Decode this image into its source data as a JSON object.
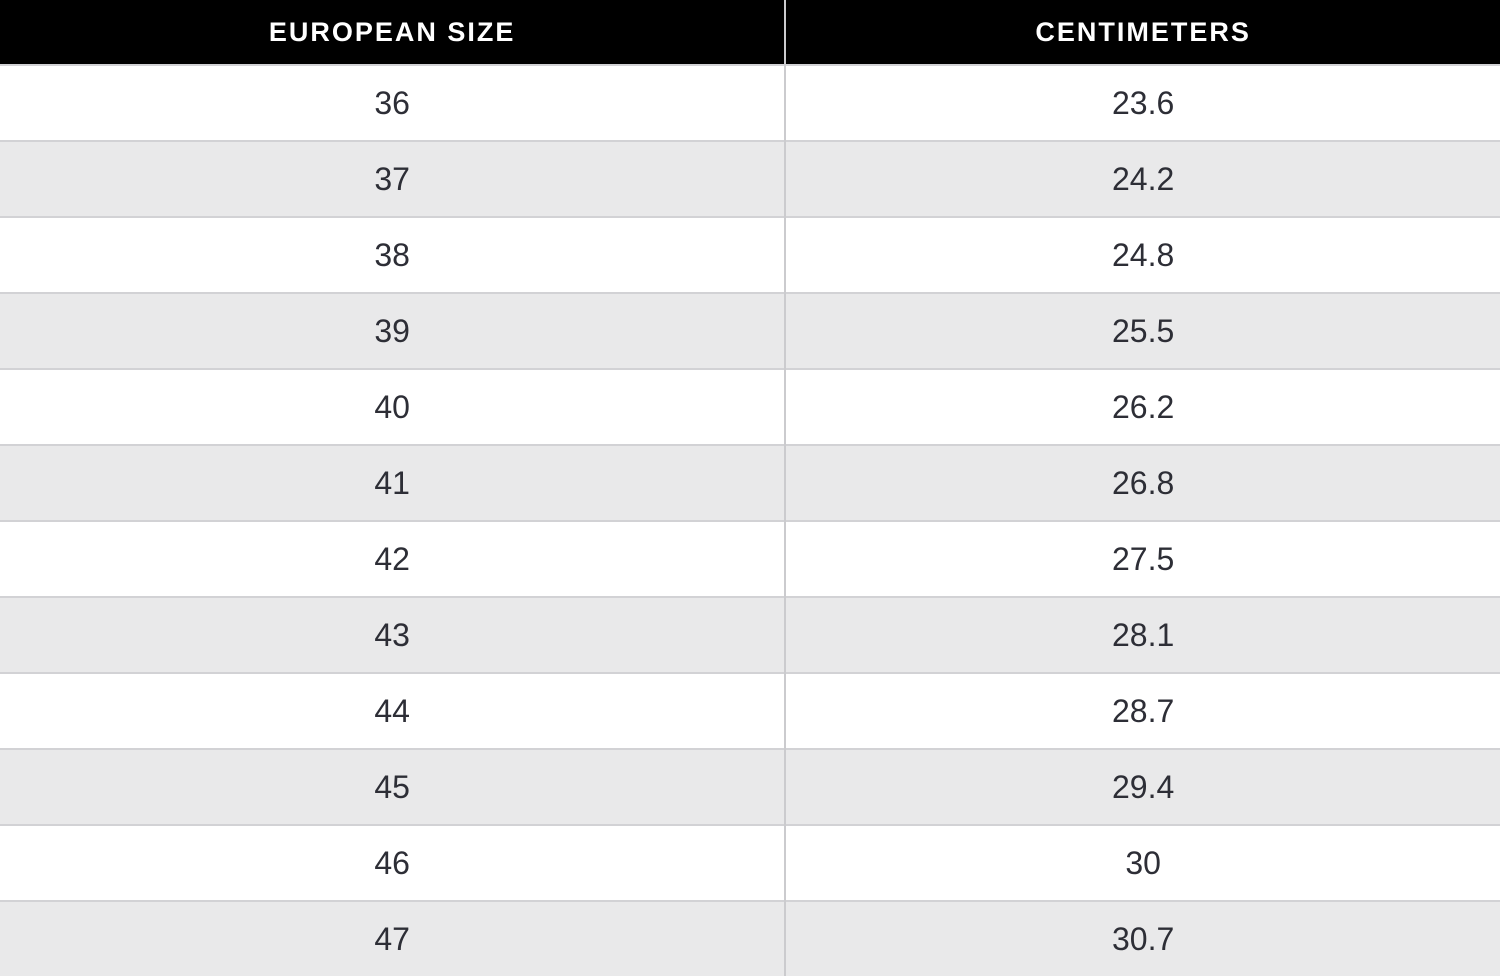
{
  "chart_data": {
    "type": "table",
    "columns": [
      "EUROPEAN SIZE",
      "CENTIMETERS"
    ],
    "rows": [
      [
        36,
        23.6
      ],
      [
        37,
        24.2
      ],
      [
        38,
        24.8
      ],
      [
        39,
        25.5
      ],
      [
        40,
        26.2
      ],
      [
        41,
        26.8
      ],
      [
        42,
        27.5
      ],
      [
        43,
        28.1
      ],
      [
        44,
        28.7
      ],
      [
        45,
        29.4
      ],
      [
        46,
        30
      ],
      [
        47,
        30.7
      ]
    ],
    "layout": {
      "zebra_striping": true,
      "header_position": "top",
      "column_split_percent": 52.35
    }
  },
  "colors": {
    "header_bg": "#000000",
    "header_text": "#ffffff",
    "row_bg": "#ffffff",
    "row_alt_bg": "#e9e9ea",
    "cell_text": "#2d2e36",
    "border": "#d2d2d5"
  }
}
